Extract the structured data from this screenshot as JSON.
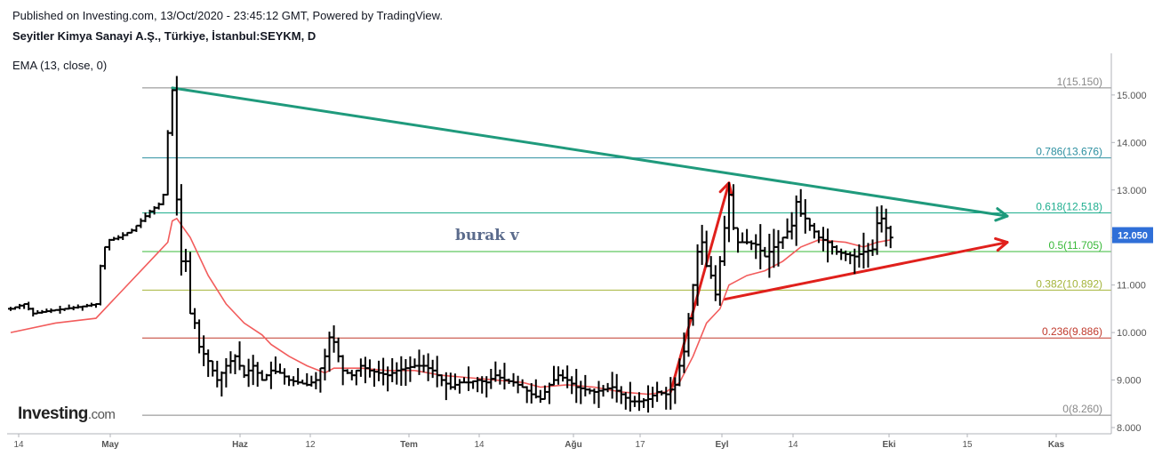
{
  "header": {
    "published": "Published on Investing.com, 13/Oct/2020 - 23:45:12 GMT, Powered by TradingView.",
    "symbol": "Seyitler Kimya Sanayi A.Ş., Türkiye, İstanbul:SEYKM, D",
    "indicator": "EMA (13, close, 0)"
  },
  "logo": {
    "brand": "Investing",
    "suffix": ".com"
  },
  "chart_data": {
    "type": "ohlc",
    "title": "",
    "ylim": [
      8.0,
      16.0
    ],
    "y_ticks": [
      "8.000",
      "9.000",
      "10.000",
      "11.000",
      "12.000",
      "13.000",
      "14.000",
      "15.000"
    ],
    "x_ticks": [
      "14",
      "May",
      "Haz",
      "12",
      "Tem",
      "14",
      "Ağu",
      "17",
      "Eyl",
      "14",
      "Eki",
      "15",
      "Kas"
    ],
    "last_price": "12.050",
    "annotation": "burak v",
    "fib_levels": [
      {
        "label": "1(15.150)",
        "value": 15.15,
        "color": "#888888"
      },
      {
        "label": "0.786(13.676)",
        "value": 13.676,
        "color": "#2c8fa0"
      },
      {
        "label": "0.618(12.518)",
        "value": 12.518,
        "color": "#1fae8f"
      },
      {
        "label": "0.5(11.705)",
        "value": 11.705,
        "color": "#38b838"
      },
      {
        "label": "0.382(10.892)",
        "value": 10.892,
        "color": "#a4b43a"
      },
      {
        "label": "0.236(9.886)",
        "value": 9.886,
        "color": "#c0392b"
      },
      {
        "label": "0(8.260)",
        "value": 8.26,
        "color": "#888888"
      }
    ],
    "price_path": [
      [
        0,
        10.5
      ],
      [
        3,
        10.6
      ],
      [
        5,
        10.4
      ],
      [
        8,
        10.45
      ],
      [
        12,
        10.5
      ],
      [
        16,
        10.55
      ],
      [
        19,
        10.6
      ],
      [
        20,
        11.4
      ],
      [
        21,
        11.8
      ],
      [
        22,
        11.95
      ],
      [
        24,
        12.0
      ],
      [
        27,
        12.15
      ],
      [
        29,
        12.35
      ],
      [
        31,
        12.55
      ],
      [
        33,
        12.7
      ],
      [
        34,
        12.9
      ],
      [
        35,
        14.2
      ],
      [
        36,
        15.1
      ],
      [
        37,
        12.8
      ],
      [
        38,
        11.5
      ],
      [
        39,
        11.5
      ],
      [
        40,
        10.4
      ],
      [
        41,
        10.2
      ],
      [
        42,
        9.7
      ],
      [
        44,
        9.4
      ],
      [
        46,
        9.0
      ],
      [
        48,
        9.3
      ],
      [
        50,
        9.5
      ],
      [
        52,
        9.1
      ],
      [
        54,
        9.3
      ],
      [
        56,
        9.0
      ],
      [
        58,
        9.2
      ],
      [
        60,
        9.15
      ],
      [
        62,
        9.0
      ],
      [
        64,
        8.95
      ],
      [
        66,
        8.9
      ],
      [
        68,
        9.0
      ],
      [
        70,
        9.5
      ],
      [
        71,
        9.9
      ],
      [
        72,
        9.8
      ],
      [
        74,
        9.2
      ],
      [
        76,
        9.1
      ],
      [
        78,
        9.3
      ],
      [
        80,
        9.2
      ],
      [
        82,
        9.15
      ],
      [
        84,
        9.1
      ],
      [
        86,
        9.2
      ],
      [
        88,
        9.25
      ],
      [
        90,
        9.3
      ],
      [
        92,
        9.3
      ],
      [
        94,
        9.2
      ],
      [
        96,
        9.0
      ],
      [
        98,
        8.85
      ],
      [
        100,
        8.95
      ],
      [
        102,
        8.95
      ],
      [
        104,
        9.0
      ],
      [
        106,
        8.95
      ],
      [
        108,
        9.1
      ],
      [
        110,
        9.0
      ],
      [
        112,
        8.95
      ],
      [
        114,
        8.85
      ],
      [
        116,
        8.7
      ],
      [
        118,
        8.6
      ],
      [
        120,
        8.9
      ],
      [
        122,
        9.1
      ],
      [
        124,
        9.0
      ],
      [
        126,
        8.85
      ],
      [
        128,
        8.8
      ],
      [
        130,
        8.75
      ],
      [
        132,
        8.8
      ],
      [
        134,
        8.85
      ],
      [
        136,
        8.7
      ],
      [
        138,
        8.55
      ],
      [
        140,
        8.55
      ],
      [
        142,
        8.6
      ],
      [
        144,
        8.75
      ],
      [
        146,
        8.7
      ],
      [
        148,
        8.9
      ],
      [
        149,
        9.3
      ],
      [
        150,
        9.6
      ],
      [
        151,
        10.3
      ],
      [
        152,
        11.0
      ],
      [
        153,
        11.7
      ],
      [
        154,
        11.9
      ],
      [
        155,
        11.4
      ],
      [
        156,
        11.2
      ],
      [
        157,
        10.8
      ],
      [
        158,
        11.5
      ],
      [
        159,
        12.2
      ],
      [
        160,
        12.9
      ],
      [
        161,
        12.2
      ],
      [
        162,
        11.9
      ],
      [
        164,
        11.9
      ],
      [
        166,
        11.85
      ],
      [
        168,
        11.6
      ],
      [
        170,
        11.8
      ],
      [
        172,
        12.0
      ],
      [
        174,
        12.25
      ],
      [
        175,
        12.75
      ],
      [
        176,
        12.5
      ],
      [
        177,
        12.4
      ],
      [
        178,
        12.25
      ],
      [
        180,
        12.0
      ],
      [
        182,
        11.9
      ],
      [
        184,
        11.7
      ],
      [
        186,
        11.65
      ],
      [
        188,
        11.6
      ],
      [
        190,
        11.7
      ],
      [
        192,
        11.75
      ],
      [
        193,
        12.3
      ],
      [
        194,
        12.4
      ],
      [
        195,
        12.2
      ],
      [
        196,
        12.0
      ]
    ],
    "ema": [
      [
        0,
        10.0
      ],
      [
        10,
        10.2
      ],
      [
        19,
        10.3
      ],
      [
        25,
        10.9
      ],
      [
        31,
        11.5
      ],
      [
        35,
        11.9
      ],
      [
        36,
        12.35
      ],
      [
        37,
        12.4
      ],
      [
        40,
        12.0
      ],
      [
        44,
        11.2
      ],
      [
        48,
        10.6
      ],
      [
        52,
        10.2
      ],
      [
        56,
        9.95
      ],
      [
        58,
        9.75
      ],
      [
        62,
        9.5
      ],
      [
        66,
        9.3
      ],
      [
        70,
        9.15
      ],
      [
        72,
        9.25
      ],
      [
        78,
        9.25
      ],
      [
        84,
        9.2
      ],
      [
        90,
        9.2
      ],
      [
        96,
        9.1
      ],
      [
        102,
        9.05
      ],
      [
        108,
        9.0
      ],
      [
        114,
        8.95
      ],
      [
        118,
        8.85
      ],
      [
        124,
        8.9
      ],
      [
        130,
        8.85
      ],
      [
        136,
        8.75
      ],
      [
        142,
        8.7
      ],
      [
        146,
        8.75
      ],
      [
        149,
        8.95
      ],
      [
        152,
        9.5
      ],
      [
        155,
        10.2
      ],
      [
        158,
        10.5
      ],
      [
        160,
        11.0
      ],
      [
        164,
        11.2
      ],
      [
        168,
        11.3
      ],
      [
        172,
        11.5
      ],
      [
        176,
        11.8
      ],
      [
        180,
        11.95
      ],
      [
        186,
        11.9
      ],
      [
        190,
        11.8
      ],
      [
        193,
        11.9
      ],
      [
        196,
        11.95
      ]
    ],
    "trend_lines": [
      {
        "from": [
          36,
          15.15
        ],
        "to": [
          222,
          12.45
        ],
        "color": "#1f9a7c"
      },
      {
        "from": [
          159,
          10.7
        ],
        "to": [
          222,
          11.9
        ],
        "color": "#e0201c"
      },
      {
        "from": [
          147,
          8.75
        ],
        "to": [
          160,
          13.15
        ],
        "color": "#e0201c"
      }
    ]
  }
}
